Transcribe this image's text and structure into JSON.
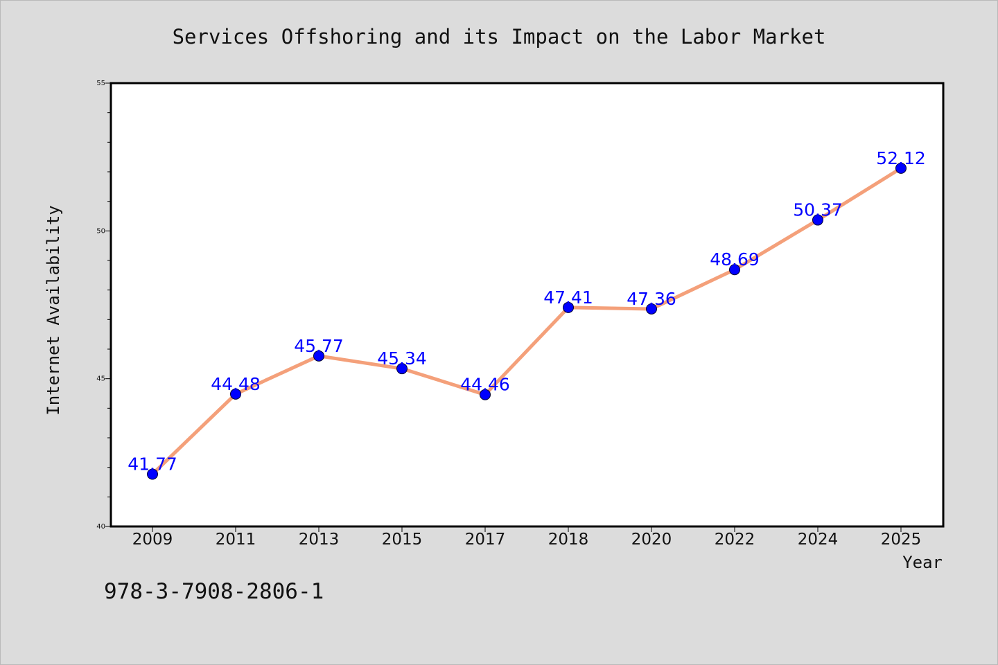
{
  "chart_data": {
    "type": "line",
    "title": "Services Offshoring and its Impact on the Labor Market",
    "xlabel": "Year",
    "ylabel": "Internet Availability",
    "categories": [
      "2009",
      "2011",
      "2013",
      "2015",
      "2017",
      "2018",
      "2020",
      "2022",
      "2024",
      "2025"
    ],
    "series": [
      {
        "values": [
          41.77,
          44.48,
          45.77,
          45.34,
          44.46,
          47.41,
          47.36,
          48.69,
          50.37,
          52.12
        ],
        "labels": [
          "41.77",
          "44.48",
          "45.77",
          "45.34",
          "44.46",
          "47.41",
          "47.36",
          "48.69",
          "50.37",
          "52.12"
        ]
      }
    ],
    "ylim": [
      40,
      55
    ],
    "yticks": [
      "40",
      "45",
      "50",
      "55"
    ],
    "y_minor_step": 1,
    "grid": false,
    "legend": "none",
    "colors": {
      "line": "#f4a07a",
      "marker": "#0000ff",
      "data_label": "#0000ff",
      "background": "#dcdcdc",
      "plot_background": "#ffffff"
    }
  },
  "footer": {
    "isbn": "978-3-7908-2806-1"
  }
}
